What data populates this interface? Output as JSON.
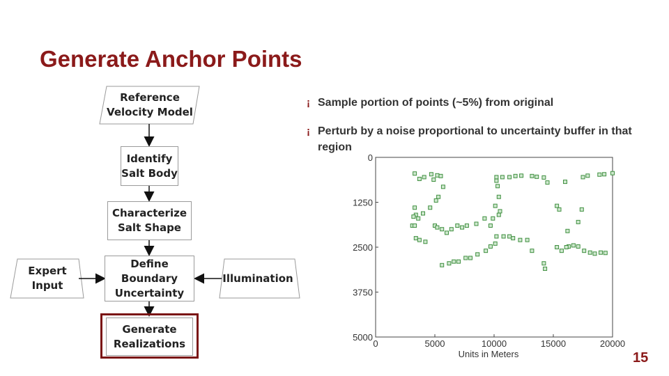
{
  "slide": {
    "title": "Generate Anchor Points",
    "page_number": "15",
    "colors": {
      "accent": "#8b1a1a",
      "point": "#3f8f3f"
    }
  },
  "flowchart": {
    "reference": "Reference\nVelocity Model",
    "identify": "Identify\nSalt Body",
    "characterize": "Characterize\nSalt Shape",
    "define": "Define\nBoundary\nUncertainty",
    "expert": "Expert\nInput",
    "illumination": "Illumination",
    "generate": "Generate\nRealizations"
  },
  "bullets": [
    {
      "mark": "¡",
      "text": "Sample portion of points (~5%) from original"
    },
    {
      "mark": "¡",
      "text": "Perturb by a noise proportional to uncertainty buffer in that region"
    }
  ],
  "chart_data": {
    "type": "scatter",
    "xlabel": "Units in Meters",
    "ylabel": "",
    "xlim": [
      0,
      20000
    ],
    "ylim": [
      5000,
      0
    ],
    "x_ticks": [
      "0",
      "5000",
      "10000",
      "15000",
      "20000"
    ],
    "y_ticks": [
      "0",
      "1250",
      "2500",
      "3750",
      "5000"
    ],
    "grid": false,
    "points": [
      [
        3300,
        450
      ],
      [
        3700,
        600
      ],
      [
        4100,
        550
      ],
      [
        4700,
        470
      ],
      [
        5200,
        500
      ],
      [
        4900,
        620
      ],
      [
        5500,
        520
      ],
      [
        5700,
        820
      ],
      [
        5300,
        1100
      ],
      [
        5100,
        1200
      ],
      [
        4600,
        1400
      ],
      [
        4000,
        1560
      ],
      [
        3600,
        1700
      ],
      [
        3400,
        1600
      ],
      [
        3300,
        1400
      ],
      [
        3200,
        1650
      ],
      [
        3100,
        1900
      ],
      [
        3300,
        1900
      ],
      [
        3400,
        2250
      ],
      [
        3700,
        2300
      ],
      [
        4200,
        2350
      ],
      [
        5000,
        1900
      ],
      [
        5200,
        1950
      ],
      [
        5600,
        2000
      ],
      [
        6000,
        2100
      ],
      [
        6400,
        2000
      ],
      [
        6900,
        1900
      ],
      [
        7300,
        1950
      ],
      [
        7700,
        1900
      ],
      [
        8500,
        1850
      ],
      [
        9200,
        1700
      ],
      [
        9700,
        1900
      ],
      [
        10200,
        2200
      ],
      [
        9900,
        1700
      ],
      [
        10400,
        1600
      ],
      [
        10500,
        1500
      ],
      [
        10100,
        1350
      ],
      [
        10400,
        1100
      ],
      [
        10300,
        800
      ],
      [
        10200,
        650
      ],
      [
        10200,
        550
      ],
      [
        10700,
        550
      ],
      [
        11300,
        550
      ],
      [
        11800,
        520
      ],
      [
        12300,
        510
      ],
      [
        13200,
        520
      ],
      [
        13600,
        540
      ],
      [
        14200,
        560
      ],
      [
        14500,
        700
      ],
      [
        16000,
        680
      ],
      [
        17500,
        550
      ],
      [
        17900,
        510
      ],
      [
        18900,
        480
      ],
      [
        19300,
        470
      ],
      [
        20000,
        440
      ],
      [
        15300,
        1350
      ],
      [
        15500,
        1450
      ],
      [
        17400,
        1450
      ],
      [
        17100,
        1800
      ],
      [
        16200,
        2050
      ],
      [
        15300,
        2500
      ],
      [
        16300,
        2480
      ],
      [
        16700,
        2450
      ],
      [
        17100,
        2480
      ],
      [
        17600,
        2600
      ],
      [
        18100,
        2650
      ],
      [
        18500,
        2680
      ],
      [
        19000,
        2650
      ],
      [
        19400,
        2660
      ],
      [
        15700,
        2600
      ],
      [
        16100,
        2500
      ],
      [
        14200,
        2950
      ],
      [
        14300,
        3100
      ],
      [
        13200,
        2600
      ],
      [
        12800,
        2300
      ],
      [
        12200,
        2300
      ],
      [
        11600,
        2250
      ],
      [
        11300,
        2200
      ],
      [
        10800,
        2200
      ],
      [
        10100,
        2400
      ],
      [
        9700,
        2480
      ],
      [
        9300,
        2600
      ],
      [
        8600,
        2700
      ],
      [
        8000,
        2800
      ],
      [
        7600,
        2800
      ],
      [
        7000,
        2900
      ],
      [
        6600,
        2900
      ],
      [
        6200,
        2950
      ],
      [
        5600,
        3000
      ]
    ]
  }
}
